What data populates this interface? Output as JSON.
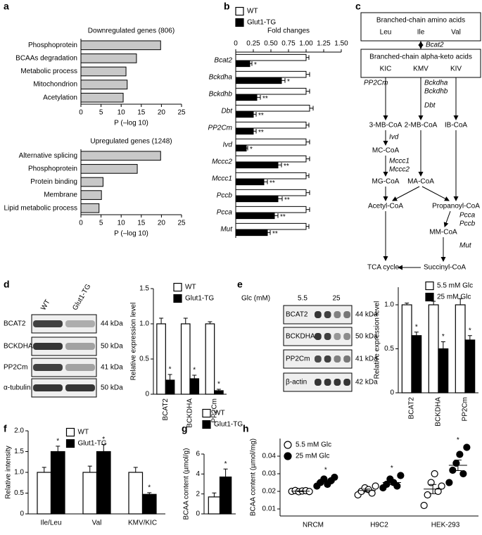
{
  "chart_data": [
    {
      "type": "bar",
      "orientation": "horizontal",
      "panel": "a",
      "title": "Downregulated genes (806)",
      "categories": [
        "Phosphoprotein",
        "BCAAs degradation",
        "Metabolic process",
        "Mitochondrion",
        "Acetylation"
      ],
      "values": [
        19.8,
        13.8,
        11.2,
        11.5,
        10.5
      ],
      "color": "#c8c8c8",
      "xlim": [
        0,
        25
      ],
      "xticks": [
        0,
        5,
        10,
        15,
        20,
        25
      ],
      "xlabel": "P (–log 10)"
    },
    {
      "type": "bar",
      "orientation": "horizontal",
      "title": "Upregulated genes (1248)",
      "categories": [
        "Alternative splicing",
        "Phosphoprotein",
        "Protein binding",
        "Membrane",
        "Lipid metabolic process"
      ],
      "values": [
        19.8,
        14.0,
        5.5,
        5.1,
        4.5
      ],
      "color": "#c8c8c8",
      "xlim": [
        0,
        25
      ],
      "xticks": [
        0,
        5,
        10,
        15,
        20,
        25
      ],
      "xlabel": "P (–log 10)"
    },
    {
      "type": "bar",
      "orientation": "horizontal",
      "panel": "b",
      "x_axis": "top",
      "italic_categories": true,
      "xlabel": "Fold changes",
      "legend": "top",
      "categories": [
        "Bcat2",
        "Bckdha",
        "Bckdhb",
        "Dbt",
        "PP2Cm",
        "Ivd",
        "Mccc2",
        "Mccc1",
        "Pccb",
        "Pcca",
        "Mut"
      ],
      "series": [
        {
          "name": "WT",
          "color": "#ffffff",
          "values": [
            1.0,
            1.0,
            1.0,
            1.05,
            1.0,
            1.0,
            1.0,
            1.0,
            1.0,
            1.0,
            1.0
          ],
          "errors": [
            0.04,
            0.05,
            0.05,
            0.05,
            0.04,
            0.05,
            0.05,
            0.04,
            0.05,
            0.05,
            0.04
          ]
        },
        {
          "name": "Glut1-TG",
          "color": "#000000",
          "values": [
            0.2,
            0.65,
            0.3,
            0.25,
            0.25,
            0.15,
            0.6,
            0.4,
            0.6,
            0.55,
            0.45
          ],
          "errors": [
            0.03,
            0.05,
            0.05,
            0.04,
            0.04,
            0.02,
            0.05,
            0.05,
            0.06,
            0.05,
            0.04
          ],
          "significance": [
            "*",
            "*",
            "**",
            "**",
            "**",
            "*",
            "**",
            "**",
            "**",
            "**",
            "**"
          ]
        }
      ],
      "xlim": [
        0,
        1.5
      ],
      "xticks": [
        0,
        0.25,
        {
          "value": 0.5,
          "label": "0.50"
        },
        0.75,
        {
          "value": 1.0,
          "label": "1.00"
        },
        1.25,
        {
          "value": 1.5,
          "label": "1.50"
        }
      ]
    },
    {
      "type": "bar",
      "ylabel": "Relative expression level",
      "legend": "upper right",
      "xtick_rotation": 90,
      "categories": [
        "BCAT2",
        "BCKDHA",
        "PP2Cm"
      ],
      "series": [
        {
          "name": "WT",
          "color": "#ffffff",
          "values": [
            1.0,
            1.0,
            1.0
          ],
          "errors": [
            0.08,
            0.08,
            0.03
          ]
        },
        {
          "name": "Glut1-TG",
          "color": "#000000",
          "values": [
            0.2,
            0.22,
            0.05
          ],
          "errors": [
            0.08,
            0.05,
            0.02
          ],
          "significance": [
            "*",
            "*",
            "*"
          ]
        }
      ],
      "ylim": [
        0,
        1.5
      ],
      "yticks": [
        0,
        0.5,
        {
          "value": 1.0,
          "label": "1.0"
        },
        1.5
      ]
    },
    {
      "type": "bar",
      "ylabel": "Relative expression level",
      "legend": "upper right",
      "xtick_rotation": 90,
      "categories": [
        "BCAT2",
        "BCKDHA",
        "PP2Cm"
      ],
      "series": [
        {
          "name": "5.5 mM Glc",
          "color": "#ffffff",
          "values": [
            1.0,
            1.0,
            1.0
          ],
          "errors": [
            0.02,
            0.04,
            0.07
          ]
        },
        {
          "name": "25 mM Glc",
          "color": "#000000",
          "values": [
            0.65,
            0.5,
            0.6
          ],
          "errors": [
            0.04,
            0.08,
            0.05
          ],
          "significance": [
            "*",
            "*",
            "*"
          ]
        }
      ],
      "ylim": [
        0,
        1.2
      ],
      "yticks": [
        0,
        0.5,
        {
          "value": 1.0,
          "label": "1.0"
        }
      ]
    },
    {
      "type": "bar",
      "panel": "f",
      "ylabel": "Relative intensity",
      "legend": "upper center",
      "categories": [
        "Ile/Leu",
        "Val",
        "KMV/KIC"
      ],
      "series": [
        {
          "name": "WT",
          "color": "#ffffff",
          "values": [
            1.0,
            1.0,
            1.0
          ],
          "errors": [
            0.12,
            0.15,
            0.12
          ]
        },
        {
          "name": "Glut1-TG",
          "color": "#000000",
          "values": [
            1.5,
            1.5,
            0.47
          ],
          "errors": [
            0.13,
            0.17,
            0.04
          ],
          "significance": [
            "*",
            "*",
            "*"
          ]
        }
      ],
      "ylim": [
        0,
        2.0
      ],
      "yticks": [
        0,
        0.5,
        {
          "value": 1.0,
          "label": "1.0"
        },
        1.5,
        {
          "value": 2.0,
          "label": "2.0"
        }
      ]
    },
    {
      "type": "bar",
      "panel": "g",
      "ylabel": "BCAA content (µmol/g)",
      "legend": "top",
      "categories": [
        null
      ],
      "series": [
        {
          "name": "WT",
          "color": "#ffffff",
          "values": [
            1.7
          ],
          "errors": [
            0.4
          ]
        },
        {
          "name": "Glut1-TG",
          "color": "#000000",
          "values": [
            3.7
          ],
          "errors": [
            0.8
          ],
          "significance": [
            "*"
          ]
        }
      ],
      "ylim": [
        0,
        6
      ],
      "yticks": [
        0,
        2,
        4,
        6
      ]
    },
    {
      "type": "strip",
      "panel": "h",
      "ylabel": "BCAA content (µmol/mg)",
      "legend": "upper left",
      "categories": [
        "NRCM",
        "H9C2",
        "HEK-293"
      ],
      "series": [
        {
          "name": "5.5 mM Glc",
          "color": "#000000",
          "filled": false,
          "values": [
            [
              0.02,
              0.0205,
              0.0198,
              0.0202,
              0.0204,
              0.0199
            ],
            [
              0.018,
              0.02,
              0.022,
              0.021,
              0.019,
              0.023
            ],
            [
              0.012,
              0.018,
              0.025,
              0.03,
              0.02,
              0.023
            ]
          ],
          "means": [
            0.0201,
            0.0205,
            0.0213
          ],
          "errors": [
            0.0002,
            0.0008,
            0.0026
          ]
        },
        {
          "name": "25 mM Glc",
          "color": "#000000",
          "filled": true,
          "values": [
            [
              0.023,
              0.025,
              0.027,
              0.024,
              0.026,
              0.028
            ],
            [
              0.022,
              0.024,
              0.027,
              0.025,
              0.023,
              0.029
            ],
            [
              0.025,
              0.032,
              0.036,
              0.041,
              0.03,
              0.045
            ]
          ],
          "means": [
            0.0255,
            0.025,
            0.0348
          ],
          "errors": [
            0.0008,
            0.0011,
            0.003
          ],
          "significance": [
            "*",
            "*",
            "*"
          ]
        }
      ],
      "ylim": [
        0.006,
        0.05
      ],
      "yticks": [
        0.01,
        0.02,
        0.03,
        0.04
      ]
    }
  ],
  "pathway": {
    "panel": "c",
    "nodes": [
      {
        "label": "Branched-chain amino acids",
        "color": "#000000"
      },
      {
        "label": "Leu",
        "color": "#e0191f"
      },
      {
        "label": "Ile",
        "color": "#3a9a2a"
      },
      {
        "label": "Val",
        "color": "#6a2c9e"
      },
      {
        "label": "Branched-chain alpha-keto acids",
        "color": "#000000"
      },
      {
        "label": "KIC",
        "color": "#e0191f"
      },
      {
        "label": "KMV",
        "color": "#3a9a2a"
      },
      {
        "label": "KIV",
        "color": "#6a2c9e"
      },
      {
        "label": "3-MB-CoA",
        "color": "#e0191f"
      },
      {
        "label": "2-MB-CoA",
        "color": "#3a9a2a"
      },
      {
        "label": "IB-CoA",
        "color": "#6a2c9e"
      },
      {
        "label": "MC-CoA",
        "color": "#000000"
      },
      {
        "label": "MG-CoA",
        "color": "#000000"
      },
      {
        "label": "MA-CoA",
        "color": "#000000"
      },
      {
        "label": "Acetyl-CoA",
        "color": "#000000"
      },
      {
        "label": "Propanoyl-CoA",
        "color": "#000000"
      },
      {
        "label": "MM-CoA",
        "color": "#000000"
      },
      {
        "label": "Succinyl-CoA",
        "color": "#000000"
      },
      {
        "label": "TCA cycle",
        "color": "#000000"
      }
    ],
    "enzymes": [
      {
        "label": "Bcat2"
      },
      {
        "label": "PP2Cm"
      },
      {
        "label": "Bckdha"
      },
      {
        "label": "Bckdhb"
      },
      {
        "label": "Dbt"
      },
      {
        "label": "Ivd"
      },
      {
        "label": "Mccc1"
      },
      {
        "label": "Mccc2"
      },
      {
        "label": "Pcca"
      },
      {
        "label": "Pccb"
      },
      {
        "label": "Mut"
      }
    ],
    "enzyme_color": "#1f4fd8"
  },
  "blots": [
    {
      "panel": "d",
      "lanes": [
        "WT",
        "Glut1-TG"
      ],
      "rows": [
        {
          "label": "BCAT2",
          "size": "44 kDa"
        },
        {
          "label": "BCKDHA",
          "size": "50 kDa"
        },
        {
          "label": "PP2Cm",
          "size": "41 kDa"
        },
        {
          "label": "α-tubulin",
          "size": "50 kDa"
        }
      ]
    },
    {
      "panel": "e",
      "header": "Glc (mM)",
      "lanes": [
        "5.5",
        "25"
      ],
      "rows": [
        {
          "label": "BCAT2",
          "size": "44 kDa"
        },
        {
          "label": "BCKDHA",
          "size": "50 kDa"
        },
        {
          "label": "PP2Cm",
          "size": "41 kDa"
        },
        {
          "label": "β-actin",
          "size": "42 kDa"
        }
      ]
    }
  ]
}
